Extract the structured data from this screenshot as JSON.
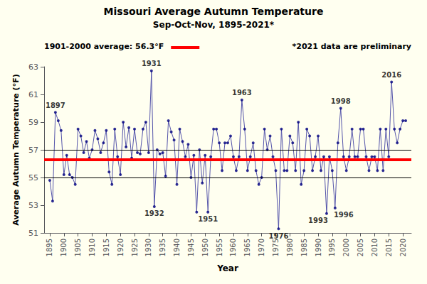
{
  "chart_data": {
    "type": "line",
    "title": "Missouri Average Autumn Temperature",
    "subtitle": "Sep-Oct-Nov, 1895-2021*",
    "xlabel": "Year",
    "ylabel": "Average Autumn Temperature (°F)",
    "note": "*2021 data are preliminary",
    "background_color": "#FFFFF0",
    "grid": false,
    "xlim": [
      1893,
      2023
    ],
    "xticks": [
      1895,
      1900,
      1905,
      1910,
      1915,
      1920,
      1925,
      1930,
      1935,
      1940,
      1945,
      1950,
      1955,
      1960,
      1965,
      1970,
      1975,
      1980,
      1985,
      1990,
      1995,
      2000,
      2005,
      2010,
      2015,
      2020
    ],
    "ylim": [
      51.0,
      63.0
    ],
    "yticks": [
      51.0,
      53.0,
      55.0,
      57.0,
      59.0,
      61.0,
      63.0
    ],
    "x": [
      1895,
      1896,
      1897,
      1898,
      1899,
      1900,
      1901,
      1902,
      1903,
      1904,
      1905,
      1906,
      1907,
      1908,
      1909,
      1910,
      1911,
      1912,
      1913,
      1914,
      1915,
      1916,
      1917,
      1918,
      1919,
      1920,
      1921,
      1922,
      1923,
      1924,
      1925,
      1926,
      1927,
      1928,
      1929,
      1930,
      1931,
      1932,
      1933,
      1934,
      1935,
      1936,
      1937,
      1938,
      1939,
      1940,
      1941,
      1942,
      1943,
      1944,
      1945,
      1946,
      1947,
      1948,
      1949,
      1950,
      1951,
      1952,
      1953,
      1954,
      1955,
      1956,
      1957,
      1958,
      1959,
      1960,
      1961,
      1962,
      1963,
      1964,
      1965,
      1966,
      1967,
      1968,
      1969,
      1970,
      1971,
      1972,
      1973,
      1974,
      1975,
      1976,
      1977,
      1978,
      1979,
      1980,
      1981,
      1982,
      1983,
      1984,
      1985,
      1986,
      1987,
      1988,
      1989,
      1990,
      1991,
      1992,
      1993,
      1994,
      1995,
      1996,
      1997,
      1998,
      1999,
      2000,
      2001,
      2002,
      2003,
      2004,
      2005,
      2006,
      2007,
      2008,
      2009,
      2010,
      2011,
      2012,
      2013,
      2014,
      2015,
      2016,
      2017,
      2018,
      2019,
      2020,
      2021
    ],
    "series": [
      {
        "type": "line",
        "color": "#5555AA",
        "values": [
          54.8,
          53.3,
          59.7,
          59.1,
          58.4,
          55.2,
          56.6,
          55.2,
          55.0,
          54.5,
          58.5,
          58.0,
          56.8,
          57.6,
          56.4,
          57.0,
          58.4,
          57.8,
          56.8,
          57.5,
          58.4,
          55.4,
          54.5,
          58.5,
          56.5,
          55.2,
          59.0,
          57.2,
          58.6,
          56.4,
          58.5,
          56.8,
          56.7,
          58.5,
          59.0,
          56.8,
          62.7,
          52.9,
          57.0,
          56.7,
          56.8,
          55.1,
          59.1,
          58.3,
          57.7,
          54.5,
          58.5,
          57.6,
          56.5,
          57.4,
          55.0,
          56.6,
          52.5,
          57.0,
          54.6,
          56.6,
          52.5,
          56.5,
          58.5,
          58.5,
          57.5,
          55.5,
          57.5,
          57.5,
          58.0,
          56.5,
          55.5,
          56.5,
          60.6,
          58.5,
          55.5,
          56.5,
          57.5,
          55.5,
          54.5,
          55.0,
          58.5,
          57.0,
          58.0,
          56.5,
          55.5,
          51.3,
          58.5,
          55.5,
          55.5,
          58.0,
          57.5,
          55.5,
          59.0,
          54.5,
          55.5,
          58.5,
          58.0,
          55.5,
          56.5,
          58.0,
          55.5,
          56.5,
          52.4,
          56.5,
          55.5,
          52.8,
          57.5,
          60.0,
          56.5,
          55.5,
          56.5,
          58.5,
          56.5,
          56.5,
          58.5,
          58.5,
          56.5,
          55.5,
          56.5,
          56.5,
          55.5,
          58.5,
          55.5,
          58.5,
          56.5,
          61.9,
          58.5,
          57.5,
          58.5,
          59.1,
          59.1
        ]
      },
      {
        "type": "scatter",
        "color": "#000080",
        "values": [
          54.8,
          53.3,
          59.7,
          59.1,
          58.4,
          55.2,
          56.6,
          55.2,
          55.0,
          54.5,
          58.5,
          58.0,
          56.8,
          57.6,
          56.4,
          57.0,
          58.4,
          57.8,
          56.8,
          57.5,
          58.4,
          55.4,
          54.5,
          58.5,
          56.5,
          55.2,
          59.0,
          57.2,
          58.6,
          56.4,
          58.5,
          56.8,
          56.7,
          58.5,
          59.0,
          56.8,
          62.7,
          52.9,
          57.0,
          56.7,
          56.8,
          55.1,
          59.1,
          58.3,
          57.7,
          54.5,
          58.5,
          57.6,
          56.5,
          57.4,
          55.0,
          56.6,
          52.5,
          57.0,
          54.6,
          56.6,
          52.5,
          56.5,
          58.5,
          58.5,
          57.5,
          55.5,
          57.5,
          57.5,
          58.0,
          56.5,
          55.5,
          56.5,
          60.6,
          58.5,
          55.5,
          56.5,
          57.5,
          55.5,
          54.5,
          55.0,
          58.5,
          57.0,
          58.0,
          56.5,
          55.5,
          51.3,
          58.5,
          55.5,
          55.5,
          58.0,
          57.5,
          55.5,
          59.0,
          54.5,
          55.5,
          58.5,
          58.0,
          55.5,
          56.5,
          58.0,
          55.5,
          56.5,
          52.4,
          56.5,
          55.5,
          52.8,
          57.5,
          60.0,
          56.5,
          55.5,
          56.5,
          58.5,
          56.5,
          56.5,
          58.5,
          58.5,
          56.5,
          55.5,
          56.5,
          56.5,
          55.5,
          58.5,
          55.5,
          58.5,
          56.5,
          61.9,
          58.5,
          57.5,
          58.5,
          59.1,
          59.1
        ]
      }
    ],
    "hlines": [
      {
        "value": 56.3,
        "color": "#FF0000",
        "label": "1901-2000 average: 56.3°F"
      },
      {
        "value": 55.0,
        "color": "#000000"
      },
      {
        "value": 57.0,
        "color": "#000000"
      }
    ],
    "annotations": [
      {
        "text": "1897",
        "x": 1897,
        "y": 59.7
      },
      {
        "text": "1931",
        "x": 1931,
        "y": 62.7
      },
      {
        "text": "1932",
        "x": 1932,
        "y": 52.9
      },
      {
        "text": "1951",
        "x": 1951,
        "y": 52.5
      },
      {
        "text": "1963",
        "x": 1963,
        "y": 60.6
      },
      {
        "text": "1976",
        "x": 1976,
        "y": 51.3
      },
      {
        "text": "1993",
        "x": 1993,
        "y": 52.4
      },
      {
        "text": "1996",
        "x": 1996,
        "y": 52.8
      },
      {
        "text": "1998",
        "x": 1998,
        "y": 60.0
      },
      {
        "text": "2016",
        "x": 2016,
        "y": 61.9
      }
    ]
  }
}
